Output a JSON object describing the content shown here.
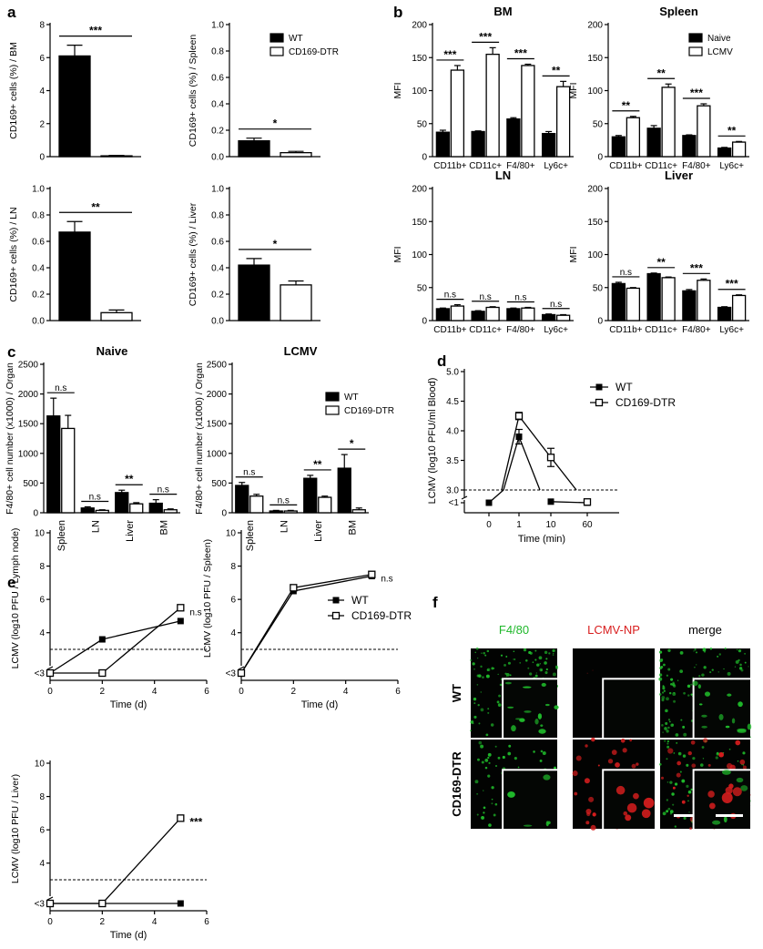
{
  "panels": {
    "a": {
      "letter": "a",
      "legend": [
        "WT",
        "CD169-DTR"
      ],
      "charts": [
        {
          "type": "bar",
          "ylabel": "CD169+ cells (%) / BM",
          "ylim": [
            0,
            8
          ],
          "yticks": [
            0,
            2,
            4,
            6,
            8
          ],
          "values": [
            6.1,
            0.05
          ],
          "errors": [
            0.65,
            0.03
          ],
          "sig": "***"
        },
        {
          "type": "bar",
          "ylabel": "CD169+ cells (%) / Spleen",
          "ylim": [
            0,
            1.0
          ],
          "yticks": [
            "0.0",
            "0.2",
            "0.4",
            "0.6",
            "0.8",
            "1.0"
          ],
          "values": [
            0.12,
            0.03
          ],
          "errors": [
            0.02,
            0.01
          ],
          "sig": "*"
        },
        {
          "type": "bar",
          "ylabel": "CD169+ cells (%) / LN",
          "ylim": [
            0,
            1.0
          ],
          "yticks": [
            "0.0",
            "0.2",
            "0.4",
            "0.6",
            "0.8",
            "1.0"
          ],
          "values": [
            0.67,
            0.06
          ],
          "errors": [
            0.08,
            0.02
          ],
          "sig": "**"
        },
        {
          "type": "bar",
          "ylabel": "CD169+ cells (%) / Liver",
          "ylim": [
            0,
            1.0
          ],
          "yticks": [
            "0.0",
            "0.2",
            "0.4",
            "0.6",
            "0.8",
            "1.0"
          ],
          "values": [
            0.42,
            0.27
          ],
          "errors": [
            0.05,
            0.03
          ],
          "sig": "*"
        }
      ]
    },
    "b": {
      "letter": "b",
      "legend": [
        "Naive",
        "LCMV"
      ],
      "categories": [
        "CD11b+",
        "CD11c+",
        "F4/80+",
        "Ly6c+"
      ],
      "charts": [
        {
          "type": "bar",
          "title": "BM",
          "ylabel": "MFI",
          "ylim": [
            0,
            200
          ],
          "yticks": [
            0,
            50,
            100,
            150,
            200
          ],
          "naive": [
            37,
            38,
            57,
            35
          ],
          "naive_err": [
            3,
            1,
            2,
            3
          ],
          "lcmv": [
            131,
            155,
            138,
            106
          ],
          "lcmv_err": [
            7,
            10,
            2,
            8
          ],
          "sig": [
            "***",
            "***",
            "***",
            "**"
          ]
        },
        {
          "type": "bar",
          "title": "Spleen",
          "ylabel": "MFI",
          "ylim": [
            0,
            200
          ],
          "yticks": [
            0,
            50,
            100,
            150,
            200
          ],
          "naive": [
            30,
            43,
            32,
            13
          ],
          "naive_err": [
            2,
            4,
            1,
            1
          ],
          "lcmv": [
            59,
            105,
            77,
            22
          ],
          "lcmv_err": [
            2,
            5,
            3,
            1
          ],
          "sig": [
            "**",
            "**",
            "***",
            "**"
          ]
        },
        {
          "type": "bar",
          "title": "LN",
          "ylabel": "MFI",
          "ylim": [
            0,
            200
          ],
          "yticks": [
            0,
            50,
            100,
            150,
            200
          ],
          "naive": [
            18,
            14,
            18,
            9
          ],
          "naive_err": [
            1,
            1,
            1,
            1
          ],
          "lcmv": [
            22,
            20,
            19,
            8
          ],
          "lcmv_err": [
            2,
            1,
            1,
            1
          ],
          "sig": [
            "n.s",
            "n.s",
            "n.s",
            "n.s"
          ]
        },
        {
          "type": "bar",
          "title": "Liver",
          "ylabel": "MFI",
          "ylim": [
            0,
            200
          ],
          "yticks": [
            0,
            50,
            100,
            150,
            200
          ],
          "naive": [
            56,
            71,
            45,
            20
          ],
          "naive_err": [
            2,
            1,
            2,
            1
          ],
          "lcmv": [
            49,
            65,
            61,
            38
          ],
          "lcmv_err": [
            1,
            1,
            2,
            1
          ],
          "sig": [
            "n.s",
            "**",
            "***",
            "***"
          ]
        }
      ]
    },
    "c": {
      "letter": "c",
      "legend": [
        "WT",
        "CD169-DTR"
      ],
      "categories": [
        "Spleen",
        "LN",
        "Liver",
        "BM"
      ],
      "charts": [
        {
          "type": "bar",
          "title": "Naive",
          "ylabel": "F4/80+ cell number (x1000) / Organ",
          "ylim": [
            0,
            2000
          ],
          "yticks": [
            0,
            500,
            1000,
            1500,
            2000,
            2500
          ],
          "wt": [
            1630,
            80,
            340,
            160
          ],
          "wt_err": [
            300,
            20,
            40,
            60
          ],
          "dtr": [
            1420,
            40,
            150,
            50
          ],
          "dtr_err": [
            220,
            10,
            20,
            15
          ],
          "sig": [
            "n.s",
            "n.s",
            "**",
            "n.s"
          ]
        },
        {
          "type": "bar",
          "title": "LCMV",
          "ylabel": "F4/80+ cell number (x1000) / Organ",
          "ylim": [
            0,
            2000
          ],
          "yticks": [
            0,
            500,
            1000,
            1500,
            2000,
            2500
          ],
          "wt": [
            460,
            30,
            580,
            750
          ],
          "wt_err": [
            50,
            10,
            50,
            230
          ],
          "dtr": [
            280,
            30,
            260,
            50
          ],
          "dtr_err": [
            30,
            10,
            20,
            30
          ],
          "sig": [
            "n.s",
            "n.s",
            "**",
            "*"
          ]
        }
      ]
    },
    "d": {
      "letter": "d",
      "type": "line",
      "ylabel": "LCMV (log10 PFU/ml Blood)",
      "xlabel": "Time (min)",
      "xticks": [
        "0",
        "1",
        "10",
        "60"
      ],
      "yticks": [
        "<1",
        "3.0",
        "3.5",
        "4.0",
        "4.5",
        "5.0"
      ],
      "legend": [
        "WT",
        "CD169-DTR"
      ],
      "series": [
        {
          "name": "WT",
          "values": [
            0.8,
            3.9,
            0.95,
            0.8
          ]
        },
        {
          "name": "CD169-DTR",
          "values": [
            0.8,
            4.25,
            3.55,
            0.9
          ]
        }
      ]
    },
    "e": {
      "letter": "e",
      "legend": [
        "WT",
        "CD169-DTR"
      ],
      "charts": [
        {
          "type": "line",
          "ylabel": "LCMV (log10 PFU / Lymph node)",
          "xlabel": "Time (d)",
          "x": [
            0,
            2,
            5
          ],
          "xticks": [
            0,
            2,
            4,
            6
          ],
          "yticks": [
            "<3",
            "4",
            "6",
            "8",
            "10"
          ],
          "wt": [
            2.6,
            3.6,
            4.7
          ],
          "dtr": [
            2.6,
            2.6,
            5.5
          ],
          "sig": "n.s"
        },
        {
          "type": "line",
          "ylabel": "LCMV (log10 PFU / Spleen)",
          "xlabel": "Time (d)",
          "x": [
            0,
            2,
            5
          ],
          "xticks": [
            0,
            2,
            4,
            6
          ],
          "yticks": [
            "<3",
            "4",
            "6",
            "8",
            "10"
          ],
          "wt": [
            2.6,
            6.5,
            7.4
          ],
          "dtr": [
            2.6,
            6.7,
            7.5
          ],
          "sig": "n.s"
        },
        {
          "type": "line",
          "ylabel": "LCMV (log10 PFU / Liver)",
          "xlabel": "Time (d)",
          "x": [
            0,
            2,
            5
          ],
          "xticks": [
            0,
            2,
            4,
            6
          ],
          "yticks": [
            "<3",
            "4",
            "6",
            "8",
            "10"
          ],
          "wt": [
            2.6,
            2.6,
            2.6
          ],
          "dtr": [
            2.6,
            2.6,
            6.7
          ],
          "sig": "***"
        }
      ]
    },
    "f": {
      "letter": "f",
      "columns": [
        "F4/80",
        "LCMV-NP",
        "merge"
      ],
      "rows": [
        "WT",
        "CD169-DTR"
      ],
      "colors": {
        "green": "#1fb82a",
        "red": "#d81e1e"
      }
    }
  }
}
